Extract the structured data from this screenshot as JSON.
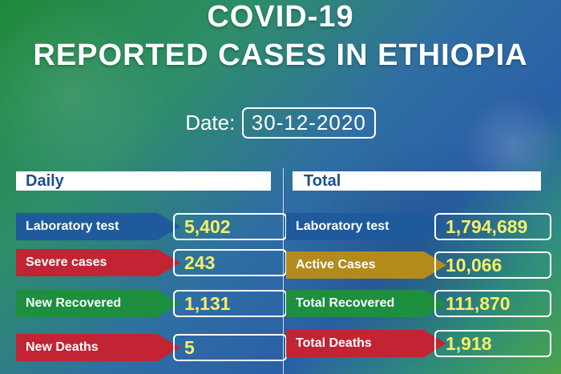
{
  "title": {
    "line1": "COVID-19",
    "line2": "REPORTED CASES IN ETHIOPIA"
  },
  "date": {
    "label": "Date:",
    "value": "30-12-2020"
  },
  "daily": {
    "header": "Daily",
    "items": [
      {
        "label": "Laboratory test",
        "value": "5,402",
        "color": "#1e5a9c"
      },
      {
        "label": "Severe cases",
        "value": "243",
        "color": "#c32434"
      },
      {
        "label": "New Recovered",
        "value": "1,131",
        "color": "#1d8f3f"
      },
      {
        "label": "New Deaths",
        "value": "5",
        "color": "#c32434"
      }
    ]
  },
  "total": {
    "header": "Total",
    "items": [
      {
        "label": "Laboratory test",
        "value": "1,794,689",
        "color": "#1e5a9c"
      },
      {
        "label": "Active Cases",
        "value": "10,066",
        "color": "#b38b1b"
      },
      {
        "label": "Total Recovered",
        "value": "111,870",
        "color": "#1d8f3f"
      },
      {
        "label": "Total Deaths",
        "value": "1,918",
        "color": "#c32434"
      }
    ]
  },
  "colors": {
    "value_text": "#f4ef6a",
    "header_text": "#1d4f8c"
  }
}
